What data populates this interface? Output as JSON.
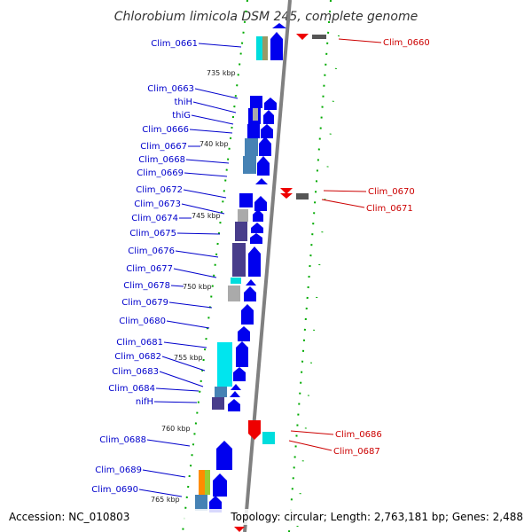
{
  "title": "Chlorobium limicola DSM 245, complete genome",
  "accession": "Accession: NC_010803",
  "topology": "Topology: circular; Length: 2,763,181 bp; Genes: 2,488",
  "colors": {
    "backbone": "#808080",
    "forward_label": "#0000cc",
    "reverse_label": "#cc0000",
    "tick": "#228b22"
  },
  "scale_labels": [
    "735 kbp",
    "740 kbp",
    "745 kbp",
    "750 kbp",
    "755 kbp",
    "760 kbp",
    "765 kbp"
  ],
  "forward_genes": [
    "Clim_0661",
    "Clim_0663",
    "thiH",
    "thiG",
    "Clim_0666",
    "Clim_0667",
    "Clim_0668",
    "Clim_0669",
    "Clim_0672",
    "Clim_0673",
    "Clim_0674",
    "Clim_0675",
    "Clim_0676",
    "Clim_0677",
    "Clim_0678",
    "Clim_0679",
    "Clim_0680",
    "Clim_0681",
    "Clim_0682",
    "Clim_0683",
    "Clim_0684",
    "nifH",
    "Clim_0688",
    "Clim_0689",
    "Clim_0690"
  ],
  "reverse_genes": [
    "Clim_0660",
    "Clim_0670",
    "Clim_0671",
    "Clim_0686",
    "Clim_0687"
  ]
}
